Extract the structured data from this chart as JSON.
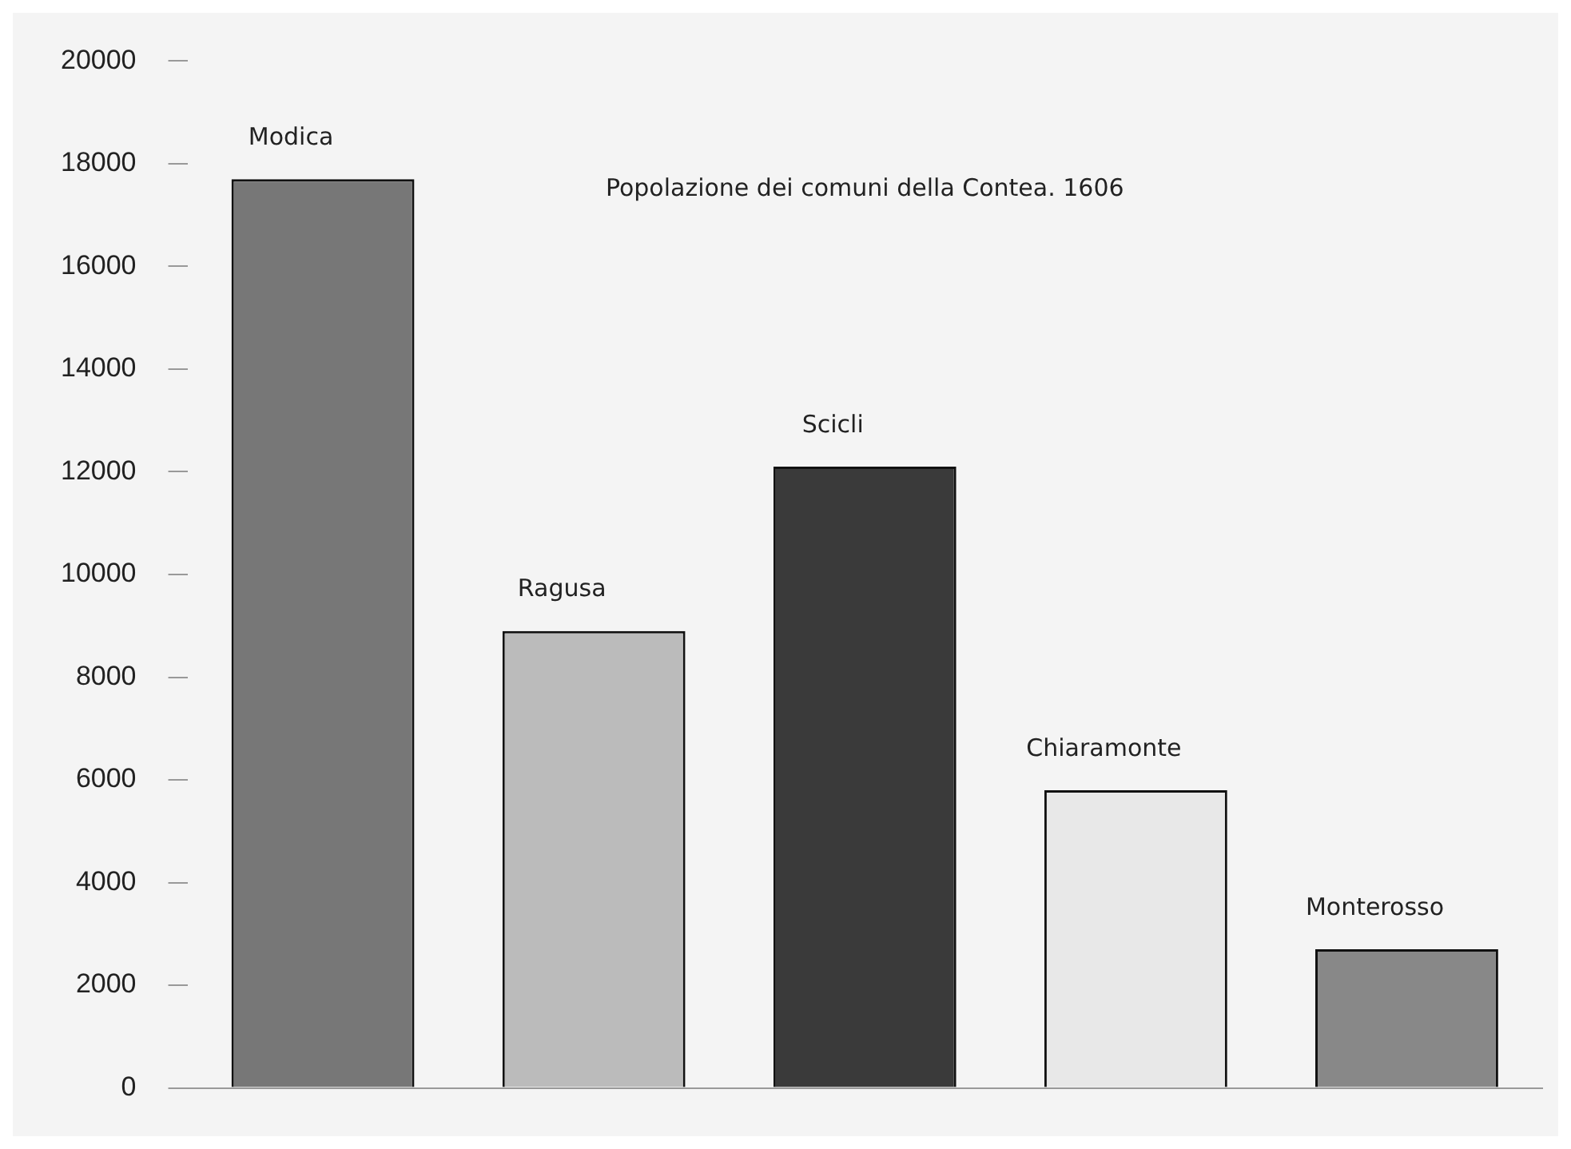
{
  "chart_data": {
    "type": "bar",
    "title": "Popolazione dei comuni della Contea. 1606",
    "categories": [
      "Modica",
      "Ragusa",
      "Scicli",
      "Chiaramonte",
      "Monterosso"
    ],
    "values": [
      17700,
      8900,
      12100,
      5800,
      2700
    ],
    "colors": [
      "#777777",
      "#bbbbbb",
      "#3a3a3a",
      "#e8e8e8",
      "#888888"
    ],
    "ylim": [
      0,
      20000
    ],
    "yticks": [
      0,
      2000,
      4000,
      6000,
      8000,
      10000,
      12000,
      14000,
      16000,
      18000,
      20000
    ],
    "grid": false,
    "legend": false,
    "tick_labels": "y"
  }
}
